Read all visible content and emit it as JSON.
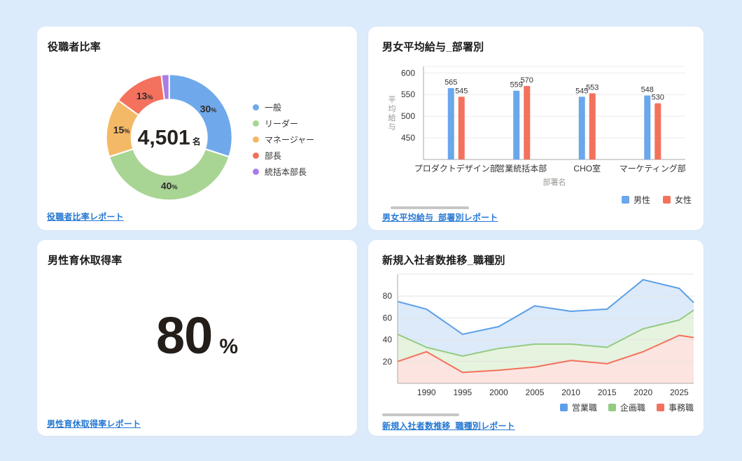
{
  "page": {
    "background": "#dcebfb",
    "card_background": "#ffffff",
    "link_color": "#2577d2"
  },
  "cards": {
    "donut": {
      "title": "役職者比率",
      "link_label": "役職者比率レポート",
      "center_value": "4,501",
      "center_unit": "名"
    },
    "bars": {
      "title": "男女平均給与_部署別",
      "link_label": "男女平均給与_部署別レポート"
    },
    "kpi": {
      "title": "男性育休取得率",
      "value": "80",
      "unit": "%",
      "link_label": "男性育休取得率レポート"
    },
    "area": {
      "title": "新規入社者数推移_職種別",
      "link_label": "新規入社者数推移_職種別レポート"
    }
  },
  "chart_data": [
    {
      "id": "position-ratio",
      "type": "pie",
      "title": "役職者比率",
      "donut": true,
      "labels": [
        "一般",
        "リーダー",
        "マネージャー",
        "部長",
        "統括本部長"
      ],
      "values": [
        30,
        40,
        15,
        13,
        2
      ],
      "colors": [
        "#6FA9EC",
        "#A8D593",
        "#F4B966",
        "#F4715E",
        "#A97CE6"
      ],
      "value_suffix": "%",
      "min_label_value": 10,
      "center_label": "4,501名",
      "legend_position": "right"
    },
    {
      "id": "salary-by-department",
      "type": "bar",
      "title": "男女平均給与_部署別",
      "categories": [
        "プロダクトデザイン部",
        "営業統括本部",
        "CHO室",
        "マーケティング部"
      ],
      "series": [
        {
          "name": "男性",
          "color": "#6AA7EC",
          "values": [
            565,
            559,
            545,
            548
          ]
        },
        {
          "name": "女性",
          "color": "#F4715C",
          "values": [
            545,
            570,
            553,
            530
          ]
        }
      ],
      "xlabel": "部署名",
      "ylabel": "平均給与",
      "yticks": [
        450,
        500,
        550,
        600
      ],
      "ylim": [
        400,
        615
      ],
      "grid": true,
      "legend_position": "bottom-right"
    },
    {
      "id": "new-hires-by-jobtype",
      "type": "area",
      "title": "新規入社者数推移_職種別",
      "x": [
        1986,
        1990,
        1995,
        2000,
        2005,
        2010,
        2015,
        2020,
        2025,
        2027
      ],
      "xticks": [
        1990,
        1995,
        2000,
        2005,
        2010,
        2015,
        2020,
        2025
      ],
      "series": [
        {
          "name": "営業職",
          "color": "#5C9FE8",
          "fill": "#DCEAF9",
          "values": [
            75,
            68,
            45,
            52,
            71,
            66,
            68,
            95,
            87,
            74
          ]
        },
        {
          "name": "企画職",
          "color": "#94CB81",
          "fill": "#E6F3DE",
          "values": [
            45,
            33,
            25,
            32,
            36,
            36,
            33,
            50,
            58,
            67
          ]
        },
        {
          "name": "事務職",
          "color": "#F4715C",
          "fill": "#FCE4E0",
          "values": [
            20,
            29,
            10,
            12,
            15,
            21,
            18,
            29,
            44,
            42
          ]
        }
      ],
      "yticks": [
        20,
        40,
        60,
        80
      ],
      "ylim": [
        0,
        100
      ],
      "xlim": [
        1986,
        2027
      ],
      "grid": true,
      "legend_position": "bottom-right"
    }
  ]
}
